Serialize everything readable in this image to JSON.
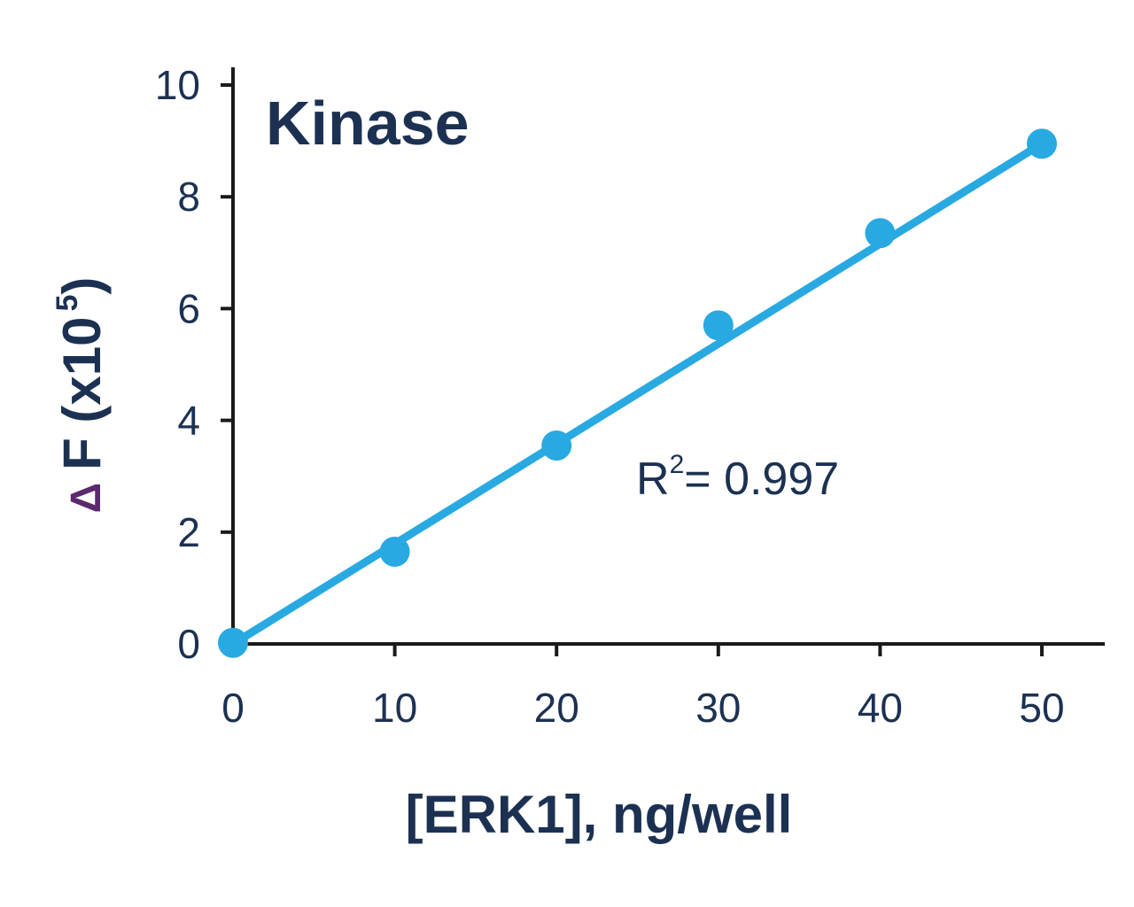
{
  "chart_data": {
    "type": "scatter",
    "title": "Kinase",
    "xlabel": "[ERK1], ng/well",
    "ylabel": {
      "symbol": "Δ",
      "text": "F (x10",
      "superscript": "5",
      "close": ")"
    },
    "xlim": [
      0,
      50
    ],
    "ylim": [
      0,
      10
    ],
    "xticks": [
      0,
      10,
      20,
      30,
      40,
      50
    ],
    "yticks": [
      0,
      2,
      4,
      6,
      8,
      10
    ],
    "grid": false,
    "legend": "none",
    "series": [
      {
        "x": [
          0,
          10,
          20,
          30,
          40,
          50
        ],
        "y": [
          0.02,
          1.65,
          3.55,
          5.7,
          7.35,
          8.95
        ]
      }
    ],
    "fit_line": {
      "type": "linear",
      "from": [
        0,
        0
      ],
      "to": [
        50,
        8.95
      ]
    },
    "annotation": {
      "text": "R",
      "superscript": "2",
      "rest": "= 0.997"
    }
  },
  "colors": {
    "series": "#29a9e1",
    "axis": "#1a1a1a",
    "text": "#1c3152",
    "delta": "#5b2a6e"
  }
}
